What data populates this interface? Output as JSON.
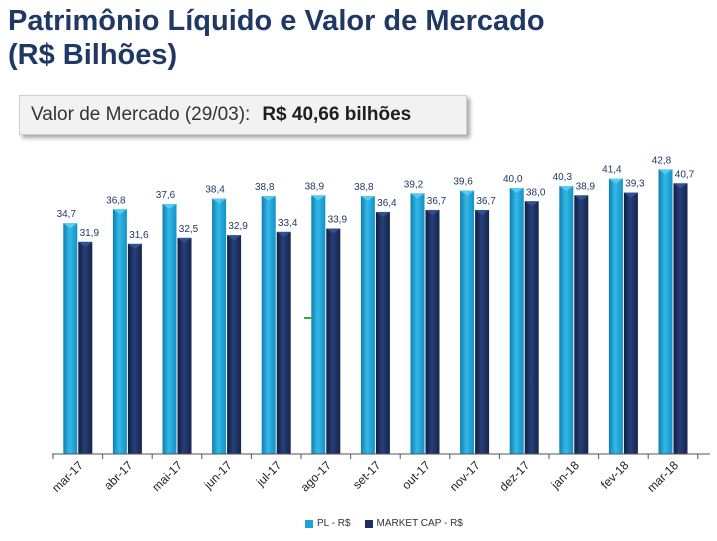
{
  "title": {
    "line1": "Patrimônio Líquido e Valor de Mercado",
    "line2": "(R$ Bilhões)"
  },
  "market_value": {
    "label": "Valor de Mercado (29/03):",
    "value": "R$ 40,66 bilhões"
  },
  "colors": {
    "pl": "#1fa3d6",
    "market_cap": "#1b2e5c",
    "axis": "#555555",
    "label": "#1f3864"
  },
  "chart_data": {
    "type": "bar",
    "categories": [
      "mar-17",
      "abr-17",
      "mai-17",
      "jun-17",
      "jul-17",
      "ago-17",
      "set-17",
      "out-17",
      "nov-17",
      "dez-17",
      "jan-18",
      "fev-18",
      "mar-18"
    ],
    "series": [
      {
        "name": "PL - R$",
        "values": [
          34.7,
          36.8,
          37.6,
          38.4,
          38.8,
          38.9,
          38.8,
          39.2,
          39.6,
          40.0,
          40.3,
          41.4,
          42.8
        ],
        "labels": [
          "34,7",
          "36,8",
          "37,6",
          "38,4",
          "38,8",
          "38,9",
          "38,8",
          "39,2",
          "39,6",
          "40,0",
          "40,3",
          "41,4",
          "42,8"
        ]
      },
      {
        "name": "MARKET CAP - R$",
        "values": [
          31.9,
          31.6,
          32.5,
          32.9,
          33.4,
          33.9,
          36.4,
          36.7,
          36.7,
          38.0,
          38.9,
          39.3,
          40.7
        ],
        "labels": [
          "31,9",
          "31,6",
          "32,5",
          "32,9",
          "33,4",
          "33,9",
          "36,4",
          "36,7",
          "36,7",
          "38,0",
          "38,9",
          "39,3",
          "40,7"
        ]
      }
    ],
    "ylim": [
      0,
      45
    ],
    "grid": false,
    "legend_position": "bottom"
  }
}
